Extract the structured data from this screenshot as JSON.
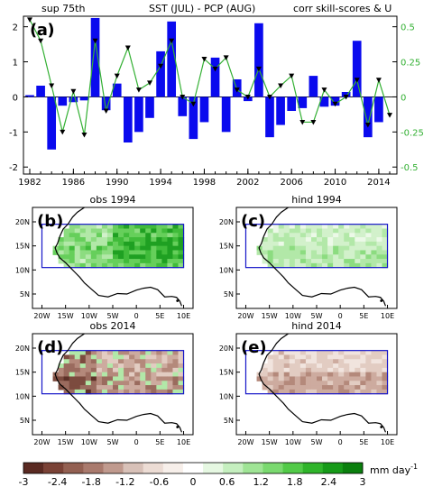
{
  "top_title": {
    "left": "sup 75th",
    "middle": "SST (JUL) - PCP (AUG)",
    "right": "corr skill-scores & U"
  },
  "chart_data": {
    "type": "bar",
    "panel": "(a)",
    "x": [
      1982,
      1983,
      1984,
      1985,
      1986,
      1987,
      1988,
      1989,
      1990,
      1991,
      1992,
      1993,
      1994,
      1995,
      1996,
      1997,
      1998,
      1999,
      2000,
      2001,
      2002,
      2003,
      2004,
      2005,
      2006,
      2007,
      2008,
      2009,
      2010,
      2011,
      2012,
      2013,
      2014,
      2015
    ],
    "series": [
      {
        "kind": "bar",
        "axis": "left",
        "color": "#0a0aee",
        "values": [
          0.05,
          0.32,
          -1.5,
          -0.25,
          -0.15,
          -0.1,
          2.25,
          -0.38,
          0.38,
          -1.3,
          -1.0,
          -0.6,
          1.3,
          2.15,
          -0.55,
          -1.2,
          -0.72,
          1.12,
          -1.0,
          0.5,
          -0.12,
          2.1,
          -1.15,
          -0.8,
          -0.4,
          -0.32,
          0.6,
          -0.28,
          -0.25,
          0.14,
          1.6,
          -1.15,
          -0.72,
          0.0
        ]
      },
      {
        "kind": "line",
        "axis": "right",
        "color": "#33b033",
        "values": [
          0.55,
          0.4,
          0.08,
          -0.25,
          0.04,
          -0.27,
          0.4,
          -0.1,
          0.15,
          0.35,
          0.05,
          0.1,
          0.22,
          0.4,
          0.0,
          -0.05,
          0.27,
          0.2,
          0.28,
          0.05,
          0.0,
          0.2,
          0.0,
          0.08,
          0.15,
          -0.18,
          -0.18,
          0.05,
          -0.05,
          0.0,
          0.12,
          -0.2,
          0.12,
          -0.13
        ]
      }
    ],
    "xticks": [
      "1982",
      "1986",
      "1990",
      "1994",
      "1998",
      "2002",
      "2006",
      "2010",
      "2014"
    ],
    "yticks_left": [
      "2",
      "1",
      "0",
      "-1",
      "-2"
    ],
    "yticks_right": [
      "0.5",
      "0.25",
      "0",
      "-0.25",
      "-0.5"
    ],
    "ylim_left": [
      -2.2,
      2.3
    ],
    "ylim_right": [
      -0.55,
      0.575
    ],
    "grid": false
  },
  "maps": [
    {
      "id": "b",
      "tag": "(b)",
      "title": "obs 1994"
    },
    {
      "id": "c",
      "tag": "(c)",
      "title": "hind 1994"
    },
    {
      "id": "d",
      "tag": "(d)",
      "title": "obs 2014"
    },
    {
      "id": "e",
      "tag": "(e)",
      "title": "hind 2014"
    }
  ],
  "map_axes": {
    "lat_labels": [
      "20N",
      "15N",
      "10N",
      "5N"
    ],
    "lon_labels": [
      "20W",
      "15W",
      "10W",
      "5W",
      "0",
      "5E",
      "10E"
    ]
  },
  "colorbar": {
    "labels": [
      "-3",
      "-2.4",
      "-1.8",
      "-1.2",
      "-0.6",
      "0",
      "0.6",
      "1.2",
      "1.8",
      "2.4",
      "3"
    ],
    "unit": "mm day",
    "unit_exp": "-1",
    "colors": [
      "#5a2a22",
      "#7a4236",
      "#936052",
      "#a97a6d",
      "#c09a8e",
      "#d8c1b8",
      "#ecdcd4",
      "#f7efea",
      "#ffffff",
      "#e6f8e2",
      "#c5efbf",
      "#9fe495",
      "#7ad96f",
      "#52ca48",
      "#2fb42a",
      "#169a18",
      "#0a7f0d"
    ]
  }
}
